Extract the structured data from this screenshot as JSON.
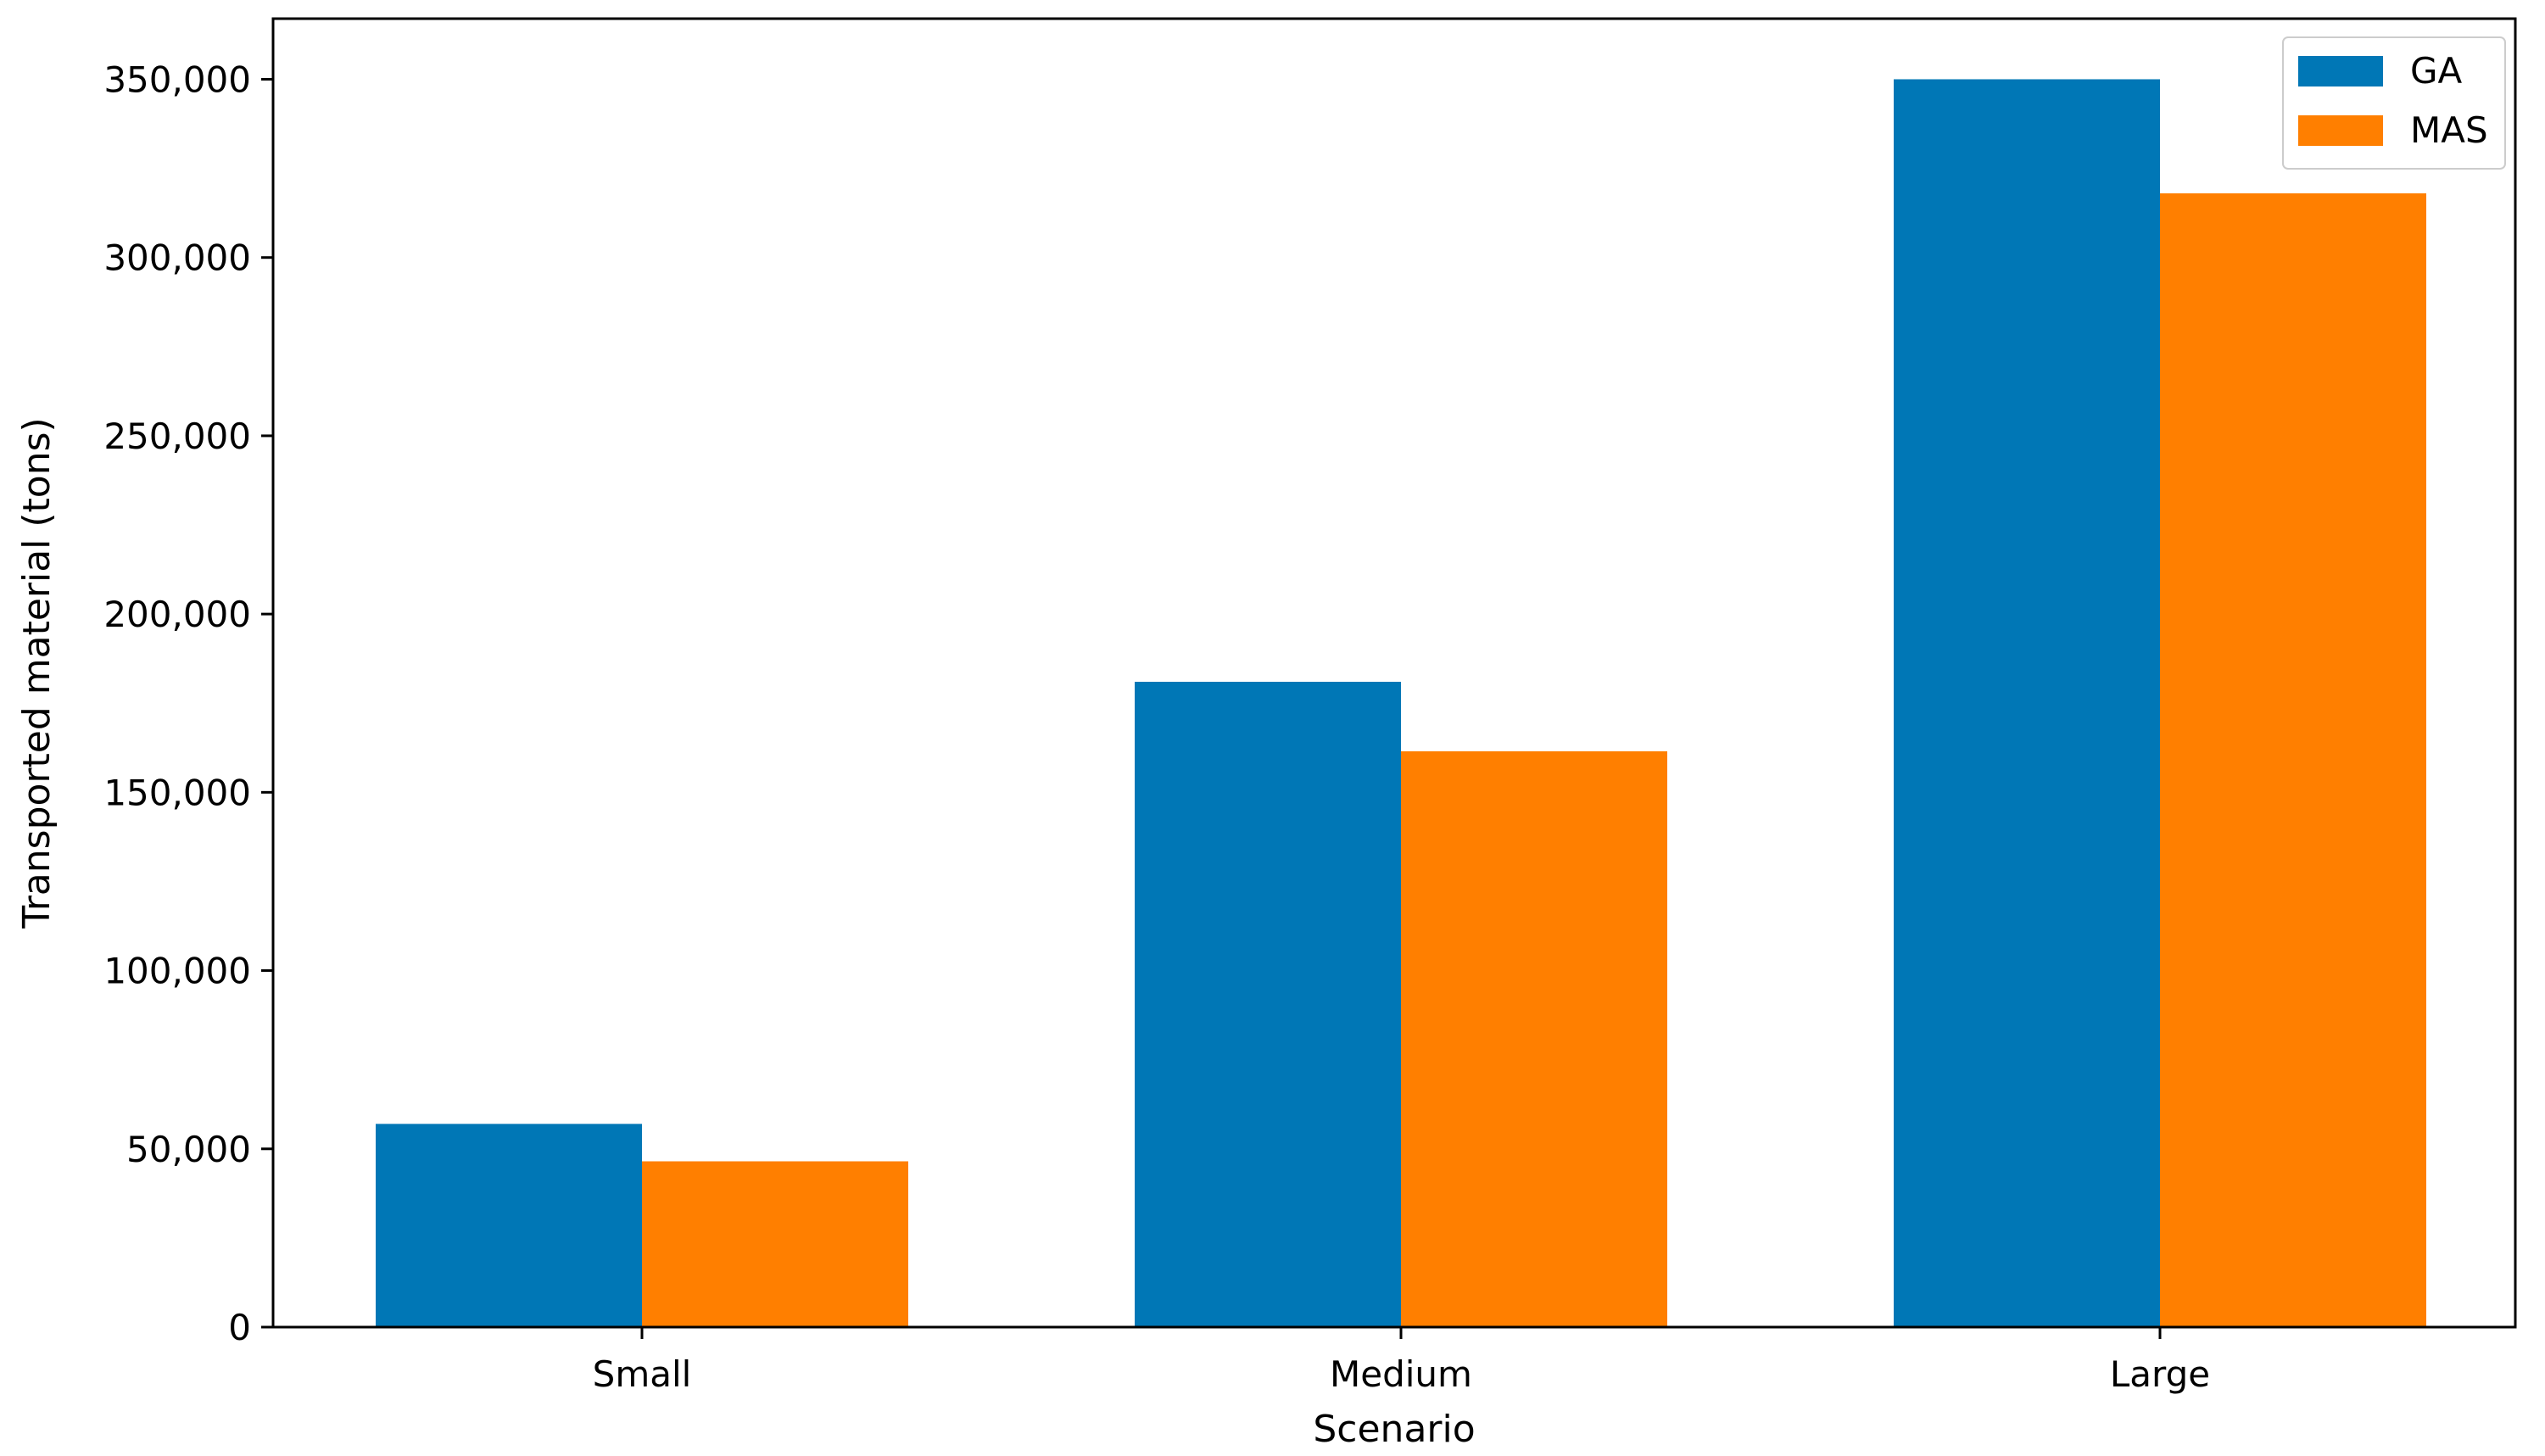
{
  "chart_data": {
    "type": "bar",
    "title": "",
    "xlabel": "Scenario",
    "ylabel": "Transported material (tons)",
    "categories": [
      "Small",
      "Medium",
      "Large"
    ],
    "series": [
      {
        "name": "GA",
        "color": "#0077b6",
        "values": [
          57000,
          181000,
          350000
        ]
      },
      {
        "name": "MAS",
        "color": "#ff7f00",
        "values": [
          46500,
          161500,
          318000
        ]
      }
    ],
    "ylim": [
      0,
      367000
    ],
    "yticks": [
      0,
      50000,
      100000,
      150000,
      200000,
      250000,
      300000,
      350000
    ],
    "ytick_labels": [
      "0",
      "50,000",
      "100,000",
      "150,000",
      "200,000",
      "250,000",
      "300,000",
      "350,000"
    ],
    "grid": false,
    "legend_position": "top-right"
  }
}
